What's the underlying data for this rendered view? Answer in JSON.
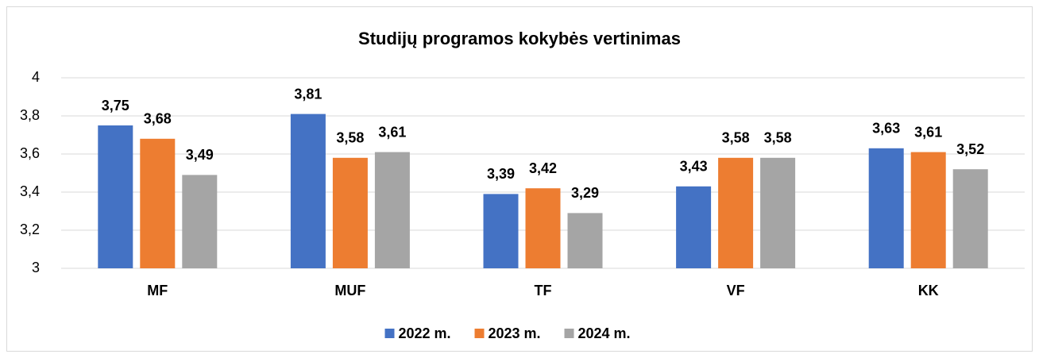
{
  "chart_data": {
    "type": "bar",
    "title": "Studijų programos kokybės vertinimas",
    "categories": [
      "MF",
      "MUF",
      "TF",
      "VF",
      "KK"
    ],
    "series": [
      {
        "name": "2022 m.",
        "color": "#4472c4",
        "values": [
          3.75,
          3.81,
          3.39,
          3.43,
          3.63
        ],
        "value_labels": [
          "3,75",
          "3,81",
          "3,39",
          "3,43",
          "3,63"
        ]
      },
      {
        "name": "2023 m.",
        "color": "#ed7d31",
        "values": [
          3.68,
          3.58,
          3.42,
          3.58,
          3.61
        ],
        "value_labels": [
          "3,68",
          "3,58",
          "3,42",
          "3,58",
          "3,61"
        ]
      },
      {
        "name": "2024 m.",
        "color": "#a5a5a5",
        "values": [
          3.49,
          3.61,
          3.29,
          3.58,
          3.52
        ],
        "value_labels": [
          "3,49",
          "3,61",
          "3,29",
          "3,58",
          "3,52"
        ]
      }
    ],
    "ylim": [
      3,
      4
    ],
    "yticks": [
      3,
      {
        "value": 3.2,
        "label": "3,2"
      },
      {
        "value": 3.4,
        "label": "3,4"
      },
      {
        "value": 3.6,
        "label": "3,6"
      },
      {
        "value": 3.8,
        "label": "3,8"
      },
      4
    ],
    "grid": true,
    "legend": "bottom"
  }
}
